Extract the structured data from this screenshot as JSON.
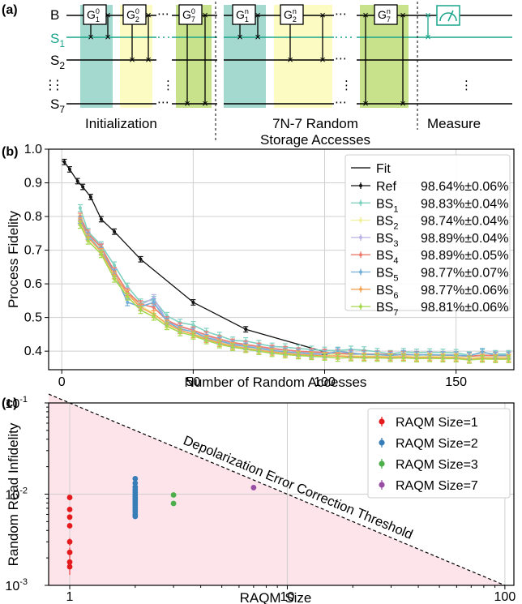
{
  "panel_labels": {
    "a": "(a)",
    "b": "(b)",
    "c": "(c)"
  },
  "circuit": {
    "rows": [
      {
        "name": "B",
        "sub": "",
        "color": "#000000"
      },
      {
        "name": "S",
        "sub": "1",
        "color": "#1aa58c"
      },
      {
        "name": "S",
        "sub": "2",
        "color": "#000000"
      },
      {
        "name": "S",
        "sub": "7",
        "color": "#000000"
      }
    ],
    "row_ellipsis": "⋮",
    "gate_groups": [
      {
        "gates": [
          {
            "main": "G",
            "sup": "0",
            "sub": "1"
          },
          {
            "main": "G",
            "sup": "0",
            "sub": "2"
          },
          {
            "main": "G",
            "sup": "0",
            "sub": "7"
          }
        ]
      },
      {
        "gates": [
          {
            "main": "G",
            "sup": "n",
            "sub": "1"
          },
          {
            "main": "G",
            "sup": "n",
            "sub": "2"
          },
          {
            "main": "G",
            "sup": "n",
            "sub": "7"
          }
        ]
      }
    ],
    "dots": "⋯",
    "section_labels": {
      "initialization": "Initialization",
      "random_line1": "7N-7 Random",
      "random_line2": "Storage Accesses",
      "measure": "Measure"
    },
    "colors": {
      "teal": "#a3d9cf",
      "yellow": "#fbfbc2",
      "green": "#c7e28a",
      "s1": "#1aa58c"
    }
  },
  "chart_data": [
    {
      "type": "scatter",
      "title": "",
      "xlabel": "Number of Random Accesses",
      "ylabel": "Process Fidelity",
      "xlim": [
        -5,
        172
      ],
      "ylim": [
        0.345,
        1.0
      ],
      "xticks": [
        0,
        50,
        100,
        150
      ],
      "yticks": [
        0.4,
        0.5,
        0.6,
        0.7,
        0.8,
        0.9,
        1.0
      ],
      "ytick_labels": [
        "0.4",
        "0.5",
        "0.6",
        "0.7",
        "0.8",
        "0.9",
        "1.0"
      ],
      "grid": true,
      "legend_position": "top-right",
      "fit_label": "Fit",
      "series": [
        {
          "name": "Ref",
          "sub": "",
          "value": "98.64%±0.06%",
          "color": "#111111",
          "x": [
            1,
            3,
            6,
            8,
            11,
            15,
            20,
            30,
            50,
            70,
            100
          ],
          "y": [
            0.962,
            0.94,
            0.905,
            0.888,
            0.858,
            0.792,
            0.755,
            0.673,
            0.545,
            0.465,
            0.398
          ],
          "err": 0.008
        },
        {
          "name": "BS",
          "sub": "1",
          "value": "98.83%±0.04%",
          "color": "#7fd1c0",
          "x": [
            7,
            10,
            15,
            20,
            25,
            30,
            35,
            40,
            45,
            50,
            55,
            60,
            65,
            70,
            75,
            80,
            85,
            90,
            95,
            100,
            105,
            110,
            115,
            120,
            125,
            130,
            135,
            140,
            145,
            150,
            155,
            160,
            165,
            170
          ],
          "y": [
            0.825,
            0.755,
            0.715,
            0.655,
            0.592,
            0.545,
            0.553,
            0.505,
            0.485,
            0.478,
            0.458,
            0.446,
            0.432,
            0.43,
            0.422,
            0.414,
            0.412,
            0.408,
            0.405,
            0.402,
            0.402,
            0.405,
            0.403,
            0.398,
            0.392,
            0.398,
            0.396,
            0.397,
            0.396,
            0.395,
            0.388,
            0.395,
            0.392,
            0.392
          ],
          "err": 0.01
        },
        {
          "name": "BS",
          "sub": "2",
          "value": "98.74%±0.04%",
          "color": "#f0ef9a",
          "x": [
            7,
            10,
            15,
            20,
            25,
            30,
            35,
            40,
            45,
            50,
            55,
            60,
            65,
            70,
            75,
            80,
            85,
            90,
            95,
            100,
            105,
            110,
            115,
            120,
            125,
            130,
            135,
            140,
            145,
            150,
            155,
            160,
            165,
            170
          ],
          "y": [
            0.795,
            0.742,
            0.7,
            0.628,
            0.572,
            0.535,
            0.512,
            0.478,
            0.462,
            0.452,
            0.438,
            0.426,
            0.418,
            0.412,
            0.406,
            0.402,
            0.398,
            0.394,
            0.392,
            0.39,
            0.39,
            0.388,
            0.386,
            0.386,
            0.385,
            0.386,
            0.384,
            0.385,
            0.384,
            0.384,
            0.38,
            0.383,
            0.382,
            0.382
          ],
          "err": 0.01
        },
        {
          "name": "BS",
          "sub": "3",
          "value": "98.89%±0.04%",
          "color": "#b9b3e3",
          "x": [
            7,
            10,
            15,
            20,
            25,
            30,
            35,
            40,
            45,
            50,
            55,
            60,
            65,
            70,
            75,
            80,
            85,
            90,
            95,
            100,
            105,
            110,
            115,
            120,
            125,
            130,
            135,
            140,
            145,
            150,
            155,
            160,
            165,
            170
          ],
          "y": [
            0.79,
            0.745,
            0.71,
            0.635,
            0.578,
            0.538,
            0.558,
            0.49,
            0.472,
            0.462,
            0.446,
            0.432,
            0.423,
            0.418,
            0.412,
            0.406,
            0.403,
            0.398,
            0.396,
            0.394,
            0.395,
            0.39,
            0.392,
            0.39,
            0.388,
            0.389,
            0.39,
            0.388,
            0.389,
            0.387,
            0.384,
            0.387,
            0.386,
            0.386
          ],
          "err": 0.01
        },
        {
          "name": "BS",
          "sub": "4",
          "value": "98.89%±0.05%",
          "color": "#ee7b6d",
          "x": [
            7,
            10,
            15,
            20,
            25,
            30,
            35,
            40,
            45,
            50,
            55,
            60,
            65,
            70,
            75,
            80,
            85,
            90,
            95,
            100,
            105,
            110,
            115,
            120,
            125,
            130,
            135,
            140,
            145,
            150,
            155,
            160,
            165,
            170
          ],
          "y": [
            0.8,
            0.75,
            0.708,
            0.638,
            0.575,
            0.54,
            0.53,
            0.492,
            0.474,
            0.462,
            0.448,
            0.436,
            0.426,
            0.42,
            0.414,
            0.408,
            0.404,
            0.4,
            0.398,
            0.396,
            0.394,
            0.393,
            0.392,
            0.391,
            0.39,
            0.39,
            0.389,
            0.389,
            0.388,
            0.388,
            0.385,
            0.388,
            0.387,
            0.387
          ],
          "err": 0.01
        },
        {
          "name": "BS",
          "sub": "5",
          "value": "98.77%±0.07%",
          "color": "#72aed8",
          "x": [
            7,
            10,
            15,
            20,
            25,
            30,
            35,
            40,
            45,
            50,
            55,
            60,
            65,
            70,
            75,
            80,
            85,
            90,
            95,
            100,
            105,
            110,
            115,
            120,
            125,
            130,
            135,
            140,
            145,
            150,
            155,
            160,
            165,
            170
          ],
          "y": [
            0.79,
            0.742,
            0.698,
            0.632,
            0.545,
            0.532,
            0.545,
            0.488,
            0.466,
            0.458,
            0.44,
            0.43,
            0.42,
            0.414,
            0.408,
            0.402,
            0.398,
            0.395,
            0.392,
            0.39,
            0.4,
            0.395,
            0.39,
            0.39,
            0.387,
            0.392,
            0.388,
            0.39,
            0.388,
            0.388,
            0.386,
            0.398,
            0.388,
            0.388
          ],
          "err": 0.01
        },
        {
          "name": "BS",
          "sub": "6",
          "value": "98.77%±0.06%",
          "color": "#f6a356",
          "x": [
            7,
            10,
            15,
            20,
            25,
            30,
            35,
            40,
            45,
            50,
            55,
            60,
            65,
            70,
            75,
            80,
            85,
            90,
            95,
            100,
            105,
            110,
            115,
            120,
            125,
            130,
            135,
            140,
            145,
            150,
            155,
            160,
            165,
            170
          ],
          "y": [
            0.785,
            0.738,
            0.695,
            0.625,
            0.57,
            0.53,
            0.51,
            0.482,
            0.462,
            0.45,
            0.436,
            0.424,
            0.415,
            0.408,
            0.402,
            0.398,
            0.394,
            0.39,
            0.388,
            0.386,
            0.386,
            0.384,
            0.383,
            0.383,
            0.382,
            0.383,
            0.381,
            0.382,
            0.381,
            0.381,
            0.376,
            0.38,
            0.379,
            0.379
          ],
          "err": 0.01
        },
        {
          "name": "BS",
          "sub": "7",
          "value": "98.81%±0.06%",
          "color": "#a6d84f",
          "x": [
            7,
            10,
            15,
            20,
            25,
            30,
            35,
            40,
            45,
            50,
            55,
            60,
            65,
            70,
            75,
            80,
            85,
            90,
            95,
            100,
            105,
            110,
            115,
            120,
            125,
            130,
            135,
            140,
            145,
            150,
            155,
            160,
            165,
            170
          ],
          "y": [
            0.775,
            0.728,
            0.688,
            0.615,
            0.562,
            0.522,
            0.502,
            0.474,
            0.456,
            0.446,
            0.432,
            0.42,
            0.412,
            0.406,
            0.4,
            0.394,
            0.39,
            0.387,
            0.385,
            0.383,
            0.38,
            0.381,
            0.38,
            0.38,
            0.379,
            0.38,
            0.378,
            0.379,
            0.378,
            0.378,
            0.374,
            0.377,
            0.376,
            0.376
          ],
          "err": 0.01
        }
      ]
    },
    {
      "type": "scatter",
      "title": "",
      "xlabel": "RAQM Size",
      "ylabel": "Random Read Infidelity",
      "xscale": "log",
      "yscale": "log",
      "xlim": [
        0.8,
        110
      ],
      "ylim": [
        0.001,
        0.1
      ],
      "xticks": [
        1,
        10,
        100
      ],
      "xtick_labels": [
        "1",
        "10",
        "100"
      ],
      "yticks": [
        0.001,
        0.01,
        0.1
      ],
      "ytick_base": "10",
      "ytick_exps": [
        "-3",
        "-2",
        "-1"
      ],
      "grid": true,
      "threshold_label": "Depolarization Error Correction Threshold",
      "threshold_line": {
        "x": [
          1,
          100
        ],
        "y": [
          0.1,
          0.001
        ]
      },
      "legend_position": "top-right",
      "series": [
        {
          "name": "RAQM Size=1",
          "color": "#e41a1c",
          "x": [
            1,
            1,
            1,
            1,
            1,
            1,
            1,
            1
          ],
          "y": [
            0.0092,
            0.0068,
            0.0056,
            0.0045,
            0.003,
            0.0023,
            0.0018,
            0.0016
          ],
          "err": 0.0003
        },
        {
          "name": "RAQM Size=2",
          "color": "#377eb8",
          "x": [
            2,
            2,
            2,
            2,
            2,
            2,
            2,
            2,
            2,
            2,
            2,
            2,
            2,
            2,
            2,
            2
          ],
          "y": [
            0.0148,
            0.0132,
            0.012,
            0.0112,
            0.0105,
            0.0099,
            0.0094,
            0.0089,
            0.0085,
            0.008,
            0.0076,
            0.0072,
            0.0068,
            0.0064,
            0.006,
            0.0057
          ],
          "err": 0.0003
        },
        {
          "name": "RAQM Size=3",
          "color": "#4daf4a",
          "x": [
            3,
            3
          ],
          "y": [
            0.0098,
            0.0079
          ],
          "err": 0.0003
        },
        {
          "name": "RAQM Size=7",
          "color": "#984ea3",
          "x": [
            7
          ],
          "y": [
            0.0118
          ],
          "err": 0.0003
        }
      ]
    }
  ]
}
